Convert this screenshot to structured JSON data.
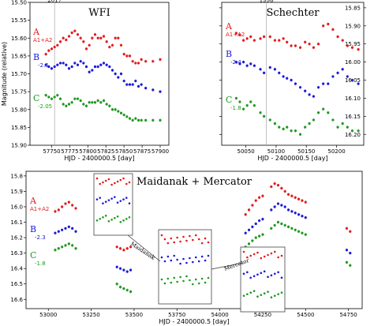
{
  "chart_data": [
    {
      "id": "wfi",
      "type": "scatter",
      "title": "WFI",
      "xlabel": "HJD - 2400000.5 [day]",
      "ylabel": "Magnitude (relative)",
      "xlim": [
        57720,
        57912
      ],
      "ylim": [
        15.9,
        15.5
      ],
      "xticks": [
        57750,
        57775,
        57800,
        57825,
        57850,
        57875,
        57900
      ],
      "yticks": [
        15.5,
        15.55,
        15.6,
        15.65,
        15.7,
        15.75,
        15.8,
        15.85,
        15.9
      ],
      "marker_year": {
        "x": 57754,
        "label": "2017"
      },
      "series": [
        {
          "name": "A",
          "sublabel": "A1+A2",
          "color": "#e8191a",
          "x": [
            57742,
            57746,
            57750,
            57754,
            57758,
            57762,
            57766,
            57770,
            57774,
            57778,
            57782,
            57786,
            57790,
            57794,
            57798,
            57802,
            57806,
            57810,
            57814,
            57818,
            57822,
            57826,
            57830,
            57834,
            57838,
            57842,
            57846,
            57850,
            57854,
            57858,
            57862,
            57866,
            57870,
            57874,
            57880,
            57890,
            57900
          ],
          "y": [
            15.645,
            15.635,
            15.63,
            15.625,
            15.62,
            15.61,
            15.6,
            15.605,
            15.595,
            15.585,
            15.58,
            15.59,
            15.6,
            15.61,
            15.63,
            15.62,
            15.6,
            15.59,
            15.6,
            15.6,
            15.595,
            15.61,
            15.625,
            15.62,
            15.6,
            15.6,
            15.62,
            15.645,
            15.65,
            15.65,
            15.665,
            15.67,
            15.67,
            15.66,
            15.665,
            15.665,
            15.66
          ]
        },
        {
          "name": "B",
          "sublabel": "-2.5",
          "color": "#1a1adc",
          "x": [
            57742,
            57746,
            57750,
            57754,
            57758,
            57762,
            57766,
            57770,
            57774,
            57778,
            57782,
            57786,
            57790,
            57794,
            57798,
            57802,
            57806,
            57810,
            57814,
            57818,
            57822,
            57826,
            57830,
            57834,
            57838,
            57842,
            57846,
            57850,
            57854,
            57858,
            57862,
            57866,
            57870,
            57874,
            57880,
            57890,
            57900
          ],
          "y": [
            15.675,
            15.68,
            15.685,
            15.68,
            15.675,
            15.67,
            15.67,
            15.675,
            15.685,
            15.68,
            15.67,
            15.675,
            15.665,
            15.67,
            15.68,
            15.695,
            15.69,
            15.68,
            15.68,
            15.675,
            15.67,
            15.675,
            15.68,
            15.69,
            15.7,
            15.71,
            15.7,
            15.72,
            15.73,
            15.73,
            15.73,
            15.72,
            15.735,
            15.73,
            15.74,
            15.745,
            15.75
          ]
        },
        {
          "name": "C",
          "sublabel": "-2.05",
          "color": "#1e9a1e",
          "x": [
            57742,
            57746,
            57750,
            57754,
            57758,
            57762,
            57766,
            57770,
            57774,
            57778,
            57782,
            57786,
            57790,
            57794,
            57798,
            57802,
            57806,
            57810,
            57814,
            57818,
            57822,
            57826,
            57830,
            57834,
            57838,
            57842,
            57846,
            57850,
            57854,
            57858,
            57862,
            57866,
            57870,
            57874,
            57880,
            57890,
            57900
          ],
          "y": [
            15.76,
            15.765,
            15.77,
            15.765,
            15.76,
            15.77,
            15.785,
            15.79,
            15.785,
            15.78,
            15.77,
            15.77,
            15.775,
            15.785,
            15.79,
            15.78,
            15.78,
            15.78,
            15.775,
            15.78,
            15.775,
            15.785,
            15.79,
            15.8,
            15.8,
            15.805,
            15.81,
            15.815,
            15.82,
            15.825,
            15.83,
            15.825,
            15.83,
            15.83,
            15.83,
            15.83,
            15.83
          ]
        }
      ]
    },
    {
      "id": "schechter",
      "type": "scatter",
      "title": "Schechter",
      "xlabel": "HJD - 2400000.5 [day]",
      "ylabel": "",
      "xlim": [
        50010,
        50245
      ],
      "ylim": [
        16.23,
        15.835
      ],
      "xticks": [
        50050,
        50100,
        50150,
        50200
      ],
      "yticks": [
        15.85,
        15.9,
        15.95,
        16.0,
        16.05,
        16.1,
        16.15,
        16.2
      ],
      "marker_year": {
        "x": 50084,
        "label": "1996"
      },
      "series": [
        {
          "name": "A",
          "sublabel": "A1+A2",
          "color": "#e8191a",
          "x": [
            50034,
            50040,
            50046,
            50052,
            50058,
            50064,
            50074,
            50080,
            50090,
            50098,
            50105,
            50112,
            50118,
            50125,
            50132,
            50140,
            50148,
            50155,
            50162,
            50170,
            50178,
            50186,
            50194,
            50202,
            50210,
            50218,
            50226,
            50236
          ],
          "y": [
            15.92,
            15.925,
            15.94,
            15.935,
            15.93,
            15.94,
            15.935,
            15.93,
            15.93,
            15.94,
            15.94,
            15.935,
            15.945,
            15.955,
            15.955,
            15.96,
            15.945,
            15.95,
            15.96,
            15.95,
            15.9,
            15.895,
            15.91,
            15.93,
            15.94,
            15.955,
            15.96,
            15.965
          ]
        },
        {
          "name": "B",
          "sublabel": "-2.4",
          "color": "#1a1adc",
          "x": [
            50034,
            50040,
            50046,
            50052,
            50058,
            50064,
            50074,
            50080,
            50090,
            50098,
            50105,
            50112,
            50118,
            50125,
            50132,
            50140,
            50148,
            50155,
            50162,
            50170,
            50178,
            50186,
            50194,
            50202,
            50210,
            50218,
            50226,
            50236
          ],
          "y": [
            16.0,
            16.005,
            16.0,
            16.01,
            16.005,
            16.01,
            16.02,
            16.03,
            16.015,
            16.02,
            16.03,
            16.04,
            16.045,
            16.05,
            16.06,
            16.07,
            16.08,
            16.09,
            16.095,
            16.07,
            16.06,
            16.06,
            16.04,
            16.03,
            16.02,
            16.04,
            16.05,
            16.06
          ]
        },
        {
          "name": "C",
          "sublabel": "-1.8",
          "color": "#1e9a1e",
          "x": [
            50034,
            50040,
            50046,
            50052,
            50058,
            50064,
            50074,
            50080,
            50090,
            50098,
            50105,
            50112,
            50118,
            50125,
            50132,
            50140,
            50148,
            50155,
            50162,
            50170,
            50178,
            50186,
            50194,
            50202,
            50210,
            50218,
            50226,
            50236
          ],
          "y": [
            16.1,
            16.11,
            16.13,
            16.12,
            16.11,
            16.12,
            16.14,
            16.15,
            16.16,
            16.17,
            16.18,
            16.185,
            16.18,
            16.19,
            16.19,
            16.2,
            16.18,
            16.17,
            16.16,
            16.14,
            16.13,
            16.14,
            16.16,
            16.18,
            16.17,
            16.18,
            16.19,
            16.19
          ]
        }
      ]
    },
    {
      "id": "maidanak-mercator",
      "type": "scatter",
      "title": "Maidanak + Mercator",
      "xlabel": "HJD - 2400000.5 [day]",
      "ylabel": "",
      "xlim": [
        52870,
        54830
      ],
      "ylim": [
        16.66,
        15.77
      ],
      "xticks": [
        53000,
        53250,
        53500,
        53750,
        54000,
        54250,
        54500,
        54750
      ],
      "yticks": [
        15.8,
        15.9,
        16.0,
        16.1,
        16.2,
        16.3,
        16.4,
        16.5,
        16.6
      ],
      "series": [
        {
          "name": "A",
          "sublabel": "A1+A2",
          "color": "#e8191a",
          "x": [
            53040,
            53060,
            53080,
            53100,
            53120,
            53140,
            53160,
            53400,
            53420,
            53440,
            53460,
            53480,
            53760,
            53780,
            53800,
            53820,
            53840,
            53860,
            53880,
            53900,
            54150,
            54170,
            54190,
            54210,
            54230,
            54250,
            54300,
            54320,
            54340,
            54360,
            54380,
            54400,
            54420,
            54440,
            54460,
            54480,
            54500,
            54740,
            54760
          ],
          "y": [
            16.03,
            16.02,
            16.0,
            15.98,
            15.97,
            15.99,
            16.01,
            16.26,
            16.27,
            16.28,
            16.27,
            16.26,
            16.23,
            16.22,
            16.2,
            16.2,
            16.19,
            16.18,
            16.19,
            16.2,
            16.05,
            16.02,
            15.99,
            15.96,
            15.94,
            15.93,
            15.87,
            15.85,
            15.86,
            15.88,
            15.9,
            15.92,
            15.93,
            15.94,
            15.95,
            15.96,
            15.97,
            16.14,
            16.16
          ]
        },
        {
          "name": "B",
          "sublabel": "-2.3",
          "color": "#1a1adc",
          "x": [
            53040,
            53060,
            53080,
            53100,
            53120,
            53140,
            53160,
            53400,
            53420,
            53440,
            53460,
            53480,
            53760,
            53780,
            53800,
            53820,
            53840,
            53860,
            53880,
            53900,
            54150,
            54170,
            54190,
            54210,
            54230,
            54250,
            54300,
            54320,
            54340,
            54360,
            54380,
            54400,
            54420,
            54440,
            54460,
            54480,
            54500,
            54740,
            54760
          ],
          "y": [
            16.17,
            16.16,
            16.15,
            16.14,
            16.13,
            16.14,
            16.16,
            16.39,
            16.4,
            16.41,
            16.42,
            16.41,
            16.36,
            16.35,
            16.33,
            16.33,
            16.32,
            16.31,
            16.32,
            16.33,
            16.17,
            16.15,
            16.13,
            16.11,
            16.09,
            16.08,
            16.02,
            16.0,
            15.98,
            15.99,
            16.0,
            16.02,
            16.03,
            16.04,
            16.05,
            16.06,
            16.07,
            16.28,
            16.3
          ]
        },
        {
          "name": "C",
          "sublabel": "-1.8",
          "color": "#1e9a1e",
          "x": [
            53040,
            53060,
            53080,
            53100,
            53120,
            53140,
            53160,
            53400,
            53420,
            53440,
            53460,
            53480,
            53760,
            53780,
            53800,
            53820,
            53840,
            53860,
            53880,
            53900,
            54150,
            54170,
            54190,
            54210,
            54230,
            54250,
            54300,
            54320,
            54340,
            54360,
            54380,
            54400,
            54420,
            54440,
            54460,
            54480,
            54500,
            54740,
            54760
          ],
          "y": [
            16.28,
            16.27,
            16.26,
            16.25,
            16.24,
            16.25,
            16.27,
            16.5,
            16.52,
            16.53,
            16.54,
            16.55,
            16.46,
            16.45,
            16.44,
            16.43,
            16.43,
            16.42,
            16.43,
            16.44,
            16.26,
            16.24,
            16.22,
            16.2,
            16.19,
            16.18,
            16.14,
            16.12,
            16.1,
            16.11,
            16.12,
            16.13,
            16.14,
            16.15,
            16.16,
            16.17,
            16.18,
            16.36,
            16.38
          ]
        }
      ],
      "insets": [
        {
          "label": "Maidanak"
        },
        {
          "label": "Mercator"
        }
      ]
    }
  ]
}
